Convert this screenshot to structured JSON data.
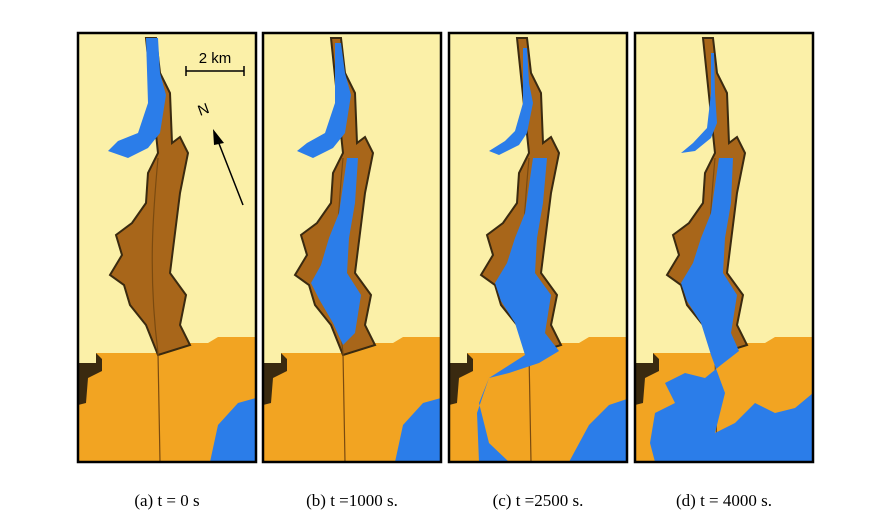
{
  "panels": [
    {
      "caption": "(a) t = 0 s"
    },
    {
      "caption": "(b) t =1000 s."
    },
    {
      "caption": "(c) t =2500 s."
    },
    {
      "caption": "(d) t = 4000 s."
    }
  ],
  "scale_bar": "2 km",
  "north": "N"
}
